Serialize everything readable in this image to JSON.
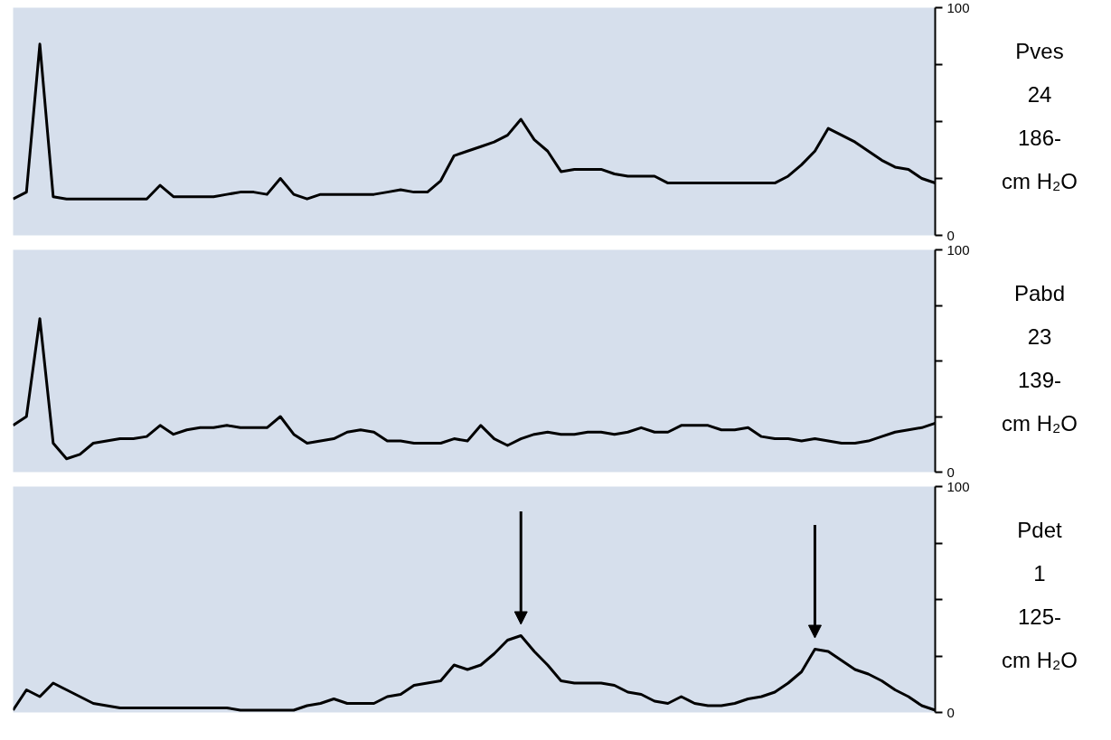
{
  "chart_data": [
    {
      "type": "line",
      "categories": [
        null,
        null,
        null,
        null,
        null,
        null,
        null,
        null,
        null,
        null,
        null,
        null,
        null,
        null,
        null,
        null,
        null,
        null,
        null,
        null,
        null,
        null,
        null,
        null,
        null,
        null,
        null,
        null,
        null,
        null,
        null,
        null,
        null,
        null,
        null,
        null,
        null,
        null,
        null,
        null,
        null,
        null,
        null,
        null,
        null,
        null,
        null,
        null,
        null,
        null,
        null,
        null,
        null,
        null,
        null,
        null,
        null,
        null,
        null,
        null,
        null,
        null,
        null,
        null,
        null,
        null,
        null,
        null,
        null,
        null
      ],
      "values": [
        16,
        19,
        84,
        17,
        16,
        16,
        16,
        16,
        16,
        16,
        16,
        22,
        17,
        17,
        17,
        17,
        18,
        19,
        19,
        18,
        25,
        18,
        16,
        18,
        18,
        18,
        18,
        18,
        19,
        20,
        19,
        19,
        24,
        35,
        37,
        39,
        41,
        44,
        51,
        42,
        37,
        28,
        29,
        29,
        29,
        27,
        26,
        26,
        26,
        23,
        23,
        23,
        23,
        23,
        23,
        23,
        23,
        23,
        26,
        31,
        37,
        47,
        44,
        41,
        37,
        33,
        30,
        29,
        25,
        23
      ],
      "color": "#000000",
      "ylim": [
        0,
        100
      ],
      "yticks": [
        0,
        {
          "value": 25,
          "label": null
        },
        {
          "value": 50,
          "label": null
        },
        {
          "value": 75,
          "label": null
        },
        100
      ],
      "tick_labels": "y",
      "annotations": [
        "Pves",
        "24",
        "186-",
        "cm H₂O"
      ]
    },
    {
      "type": "line",
      "categories": [
        null,
        null,
        null,
        null,
        null,
        null,
        null,
        null,
        null,
        null,
        null,
        null,
        null,
        null,
        null,
        null,
        null,
        null,
        null,
        null,
        null,
        null,
        null,
        null,
        null,
        null,
        null,
        null,
        null,
        null,
        null,
        null,
        null,
        null,
        null,
        null,
        null,
        null,
        null,
        null,
        null,
        null,
        null,
        null,
        null,
        null,
        null,
        null,
        null,
        null,
        null,
        null,
        null,
        null,
        null,
        null,
        null,
        null,
        null,
        null,
        null,
        null,
        null,
        null,
        null,
        null,
        null,
        null,
        null,
        null
      ],
      "values": [
        21,
        25,
        69,
        13,
        6,
        8,
        13,
        14,
        15,
        15,
        16,
        21,
        17,
        19,
        20,
        20,
        21,
        20,
        20,
        20,
        25,
        17,
        13,
        14,
        15,
        18,
        19,
        18,
        14,
        14,
        13,
        13,
        13,
        15,
        14,
        21,
        15,
        12,
        15,
        17,
        18,
        17,
        17,
        18,
        18,
        17,
        18,
        20,
        18,
        18,
        21,
        21,
        21,
        19,
        19,
        20,
        16,
        15,
        15,
        14,
        15,
        14,
        13,
        13,
        14,
        16,
        18,
        19,
        20,
        22
      ],
      "color": "#000000",
      "ylim": [
        0,
        100
      ],
      "yticks": [
        0,
        {
          "value": 25,
          "label": null
        },
        {
          "value": 50,
          "label": null
        },
        {
          "value": 75,
          "label": null
        },
        100
      ],
      "tick_labels": "y",
      "annotations": [
        "Pabd",
        "23",
        "139-",
        "cm H₂O"
      ]
    },
    {
      "type": "line",
      "categories": [
        null,
        null,
        null,
        null,
        null,
        null,
        null,
        null,
        null,
        null,
        null,
        null,
        null,
        null,
        null,
        null,
        null,
        null,
        null,
        null,
        null,
        null,
        null,
        null,
        null,
        null,
        null,
        null,
        null,
        null,
        null,
        null,
        null,
        null,
        null,
        null,
        null,
        null,
        null,
        null,
        null,
        null,
        null,
        null,
        null,
        null,
        null,
        null,
        null,
        null,
        null,
        null,
        null,
        null,
        null,
        null,
        null,
        null,
        null,
        null,
        null,
        null,
        null,
        null,
        null,
        null,
        null,
        null,
        null,
        null
      ],
      "values": [
        1,
        10,
        7,
        13,
        10,
        7,
        4,
        3,
        2,
        2,
        2,
        2,
        2,
        2,
        2,
        2,
        2,
        1,
        1,
        1,
        1,
        1,
        3,
        4,
        6,
        4,
        4,
        4,
        7,
        8,
        12,
        13,
        14,
        21,
        19,
        21,
        26,
        32,
        34,
        27,
        21,
        14,
        13,
        13,
        13,
        12,
        9,
        8,
        5,
        4,
        7,
        4,
        3,
        3,
        4,
        6,
        7,
        9,
        13,
        18,
        28,
        27,
        23,
        19,
        17,
        14,
        10,
        7,
        3,
        1
      ],
      "color": "#000000",
      "ylim": [
        0,
        100
      ],
      "yticks": [
        0,
        {
          "value": 25,
          "label": null
        },
        {
          "value": 50,
          "label": null
        },
        {
          "value": 75,
          "label": null
        },
        100
      ],
      "tick_labels": "y",
      "annotations": [
        "Pdet",
        "1",
        "125-",
        "cm H₂O"
      ]
    }
  ]
}
